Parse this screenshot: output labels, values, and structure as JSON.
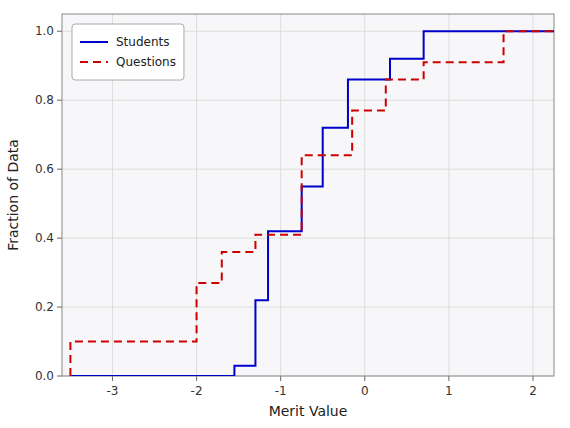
{
  "chart_data": {
    "type": "line",
    "x_label": "Merit Value",
    "y_label": "Fraction of Data",
    "xlim": [
      -3.6,
      2.25
    ],
    "ylim": [
      0.0,
      1.05
    ],
    "xticks": [
      -3,
      -2,
      -1,
      0,
      1,
      2
    ],
    "yticks": [
      {
        "value": 0.0,
        "label": "0.0"
      },
      0.2,
      0.4,
      0.6,
      0.8,
      {
        "value": 1.0,
        "label": "1.0"
      }
    ],
    "grid": true,
    "legend": "upper-left",
    "series": [
      {
        "name": "Students",
        "color": "#0000cc",
        "line_style": "solid",
        "x": [
          -3.5,
          -1.55,
          -1.55,
          -1.3,
          -1.3,
          -1.15,
          -1.15,
          -0.75,
          -0.75,
          -0.5,
          -0.5,
          -0.2,
          -0.2,
          0.3,
          0.3,
          0.7,
          0.7,
          1.05,
          1.05,
          2.25
        ],
        "values": [
          0.0,
          0.0,
          0.03,
          0.03,
          0.22,
          0.22,
          0.42,
          0.42,
          0.55,
          0.55,
          0.72,
          0.72,
          0.86,
          0.86,
          0.92,
          0.92,
          1.0,
          1.0,
          1.0,
          1.0
        ]
      },
      {
        "name": "Questions",
        "color": "#cc0000",
        "line_style": "dashed",
        "x": [
          -3.5,
          -3.5,
          -2.0,
          -2.0,
          -1.7,
          -1.7,
          -1.3,
          -1.3,
          -0.75,
          -0.75,
          -0.15,
          -0.15,
          0.25,
          0.25,
          0.7,
          0.7,
          1.65,
          1.65,
          2.25
        ],
        "values": [
          0.0,
          0.1,
          0.1,
          0.27,
          0.27,
          0.36,
          0.36,
          0.41,
          0.41,
          0.64,
          0.64,
          0.77,
          0.77,
          0.86,
          0.86,
          0.91,
          0.91,
          1.0,
          1.0
        ]
      }
    ]
  }
}
